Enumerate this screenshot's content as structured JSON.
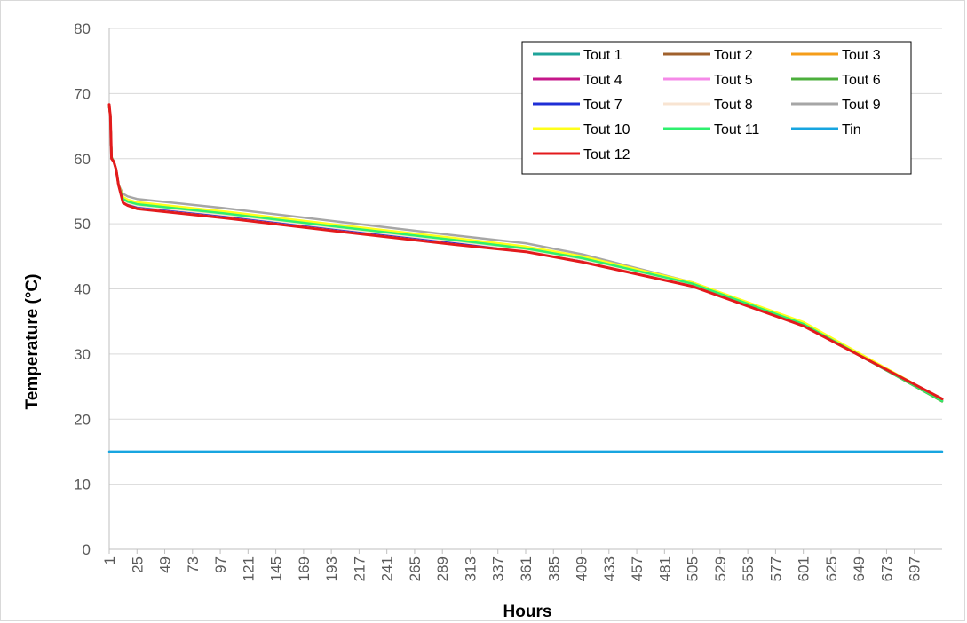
{
  "chart_data": {
    "type": "line",
    "title": "",
    "xlabel": "Hours",
    "ylabel": "Temperature (°C)",
    "ylim": [
      0,
      80
    ],
    "yticks": [
      0,
      10,
      20,
      30,
      40,
      50,
      60,
      70,
      80
    ],
    "xlim": [
      1,
      721
    ],
    "xticks": [
      1,
      25,
      49,
      73,
      97,
      121,
      145,
      169,
      193,
      217,
      241,
      265,
      289,
      313,
      337,
      361,
      385,
      409,
      433,
      457,
      481,
      505,
      529,
      553,
      577,
      601,
      625,
      649,
      673,
      697
    ],
    "grid": "horizontal",
    "legend_position": "top-right",
    "series": [
      {
        "name": "Tout 1",
        "color": "#1fa39a",
        "x": [
          1,
          2,
          3,
          5,
          7,
          9,
          13,
          17,
          25,
          100,
          200,
          300,
          361,
          410,
          505,
          601,
          721
        ],
        "y": [
          68.0,
          66.5,
          60.2,
          59.5,
          58.3,
          56.0,
          53.6,
          53.2,
          52.8,
          51.4,
          49.3,
          47.3,
          46.0,
          44.5,
          40.6,
          34.5,
          22.8
        ]
      },
      {
        "name": "Tout 2",
        "color": "#a0612d",
        "x": [
          1,
          2,
          3,
          5,
          7,
          9,
          13,
          17,
          25,
          100,
          200,
          300,
          361,
          410,
          505,
          601,
          721
        ],
        "y": [
          68.0,
          66.5,
          60.2,
          59.5,
          58.3,
          56.0,
          53.5,
          53.1,
          52.7,
          51.3,
          49.2,
          47.2,
          45.9,
          44.4,
          40.6,
          34.5,
          22.9
        ]
      },
      {
        "name": "Tout 3",
        "color": "#f59d1a",
        "x": [
          1,
          2,
          3,
          5,
          7,
          9,
          13,
          17,
          25,
          100,
          200,
          300,
          361,
          410,
          505,
          601,
          721
        ],
        "y": [
          68.0,
          66.5,
          60.2,
          59.5,
          58.3,
          56.0,
          53.7,
          53.4,
          53.0,
          51.6,
          49.5,
          47.5,
          46.2,
          44.7,
          40.8,
          34.6,
          22.9
        ]
      },
      {
        "name": "Tout 4",
        "color": "#c5178a",
        "x": [
          1,
          2,
          3,
          5,
          7,
          9,
          13,
          17,
          25,
          100,
          200,
          300,
          361,
          410,
          505,
          601,
          721
        ],
        "y": [
          68.0,
          66.5,
          60.2,
          59.5,
          58.3,
          56.0,
          53.5,
          53.1,
          52.7,
          51.3,
          49.2,
          47.2,
          45.9,
          44.4,
          40.6,
          34.5,
          22.9
        ]
      },
      {
        "name": "Tout 5",
        "color": "#f58ae8",
        "x": [
          1,
          2,
          3,
          5,
          7,
          9,
          13,
          17,
          25,
          100,
          200,
          300,
          361,
          410,
          505,
          601,
          721
        ],
        "y": [
          68.0,
          66.5,
          60.2,
          59.5,
          58.3,
          56.0,
          53.6,
          53.2,
          52.8,
          51.4,
          49.3,
          47.3,
          46.0,
          44.5,
          40.7,
          34.5,
          22.9
        ]
      },
      {
        "name": "Tout 6",
        "color": "#4caf3c",
        "x": [
          1,
          2,
          3,
          5,
          7,
          9,
          13,
          17,
          25,
          100,
          200,
          300,
          361,
          410,
          505,
          601,
          721
        ],
        "y": [
          68.0,
          66.5,
          60.2,
          59.5,
          58.3,
          56.0,
          53.8,
          53.4,
          53.0,
          51.6,
          49.5,
          47.5,
          46.2,
          44.7,
          40.8,
          34.6,
          22.7
        ]
      },
      {
        "name": "Tout 7",
        "color": "#1f2fd6",
        "x": [
          1,
          2,
          3,
          5,
          7,
          9,
          13,
          17,
          25,
          100,
          200,
          300,
          361,
          410,
          505,
          601,
          721
        ],
        "y": [
          68.0,
          66.5,
          60.2,
          59.5,
          58.3,
          56.0,
          53.5,
          53.1,
          52.7,
          51.3,
          49.2,
          47.2,
          45.9,
          44.4,
          40.6,
          34.5,
          22.9
        ]
      },
      {
        "name": "Tout 8",
        "color": "#f8e4d2",
        "x": [
          1,
          2,
          3,
          5,
          7,
          9,
          13,
          17,
          25,
          100,
          200,
          300,
          361,
          410,
          505,
          601,
          721
        ],
        "y": [
          68.0,
          66.5,
          60.2,
          59.5,
          58.3,
          56.0,
          53.6,
          53.2,
          52.8,
          51.4,
          49.3,
          47.3,
          46.0,
          44.5,
          40.7,
          34.5,
          22.9
        ]
      },
      {
        "name": "Tout 9",
        "color": "#a6a6a6",
        "x": [
          1,
          2,
          3,
          5,
          7,
          9,
          13,
          17,
          25,
          100,
          200,
          300,
          361,
          410,
          505,
          601,
          721
        ],
        "y": [
          68.0,
          66.5,
          60.2,
          59.5,
          58.3,
          56.0,
          54.6,
          54.2,
          53.8,
          52.4,
          50.3,
          48.2,
          47.0,
          45.3,
          41.0,
          34.8,
          23.0
        ]
      },
      {
        "name": "Tout 10",
        "color": "#ffff1a",
        "x": [
          1,
          2,
          3,
          5,
          7,
          9,
          13,
          17,
          25,
          100,
          200,
          300,
          361,
          410,
          505,
          601,
          721
        ],
        "y": [
          68.0,
          66.5,
          60.2,
          59.5,
          58.3,
          56.0,
          54.1,
          53.7,
          53.3,
          51.9,
          49.8,
          47.8,
          46.5,
          45.0,
          41.0,
          34.9,
          23.0
        ]
      },
      {
        "name": "Tout 11",
        "color": "#2ef06e",
        "x": [
          1,
          2,
          3,
          5,
          7,
          9,
          13,
          17,
          25,
          100,
          200,
          300,
          361,
          410,
          505,
          601,
          721
        ],
        "y": [
          68.0,
          66.5,
          60.2,
          59.5,
          58.3,
          56.0,
          53.8,
          53.4,
          53.0,
          51.6,
          49.5,
          47.5,
          46.2,
          44.7,
          40.8,
          34.6,
          22.8
        ]
      },
      {
        "name": "Tin",
        "color": "#17a5e0",
        "x": [
          1,
          721
        ],
        "y": [
          15.0,
          15.0
        ]
      },
      {
        "name": "Tout 12",
        "color": "#e31a1c",
        "x": [
          1,
          2,
          3,
          5,
          7,
          9,
          13,
          17,
          25,
          100,
          200,
          300,
          361,
          410,
          505,
          601,
          721
        ],
        "y": [
          68.3,
          66.5,
          60.0,
          59.5,
          58.3,
          56.0,
          53.2,
          52.8,
          52.3,
          50.9,
          48.8,
          46.8,
          45.7,
          44.1,
          40.4,
          34.3,
          23.1
        ]
      }
    ]
  }
}
